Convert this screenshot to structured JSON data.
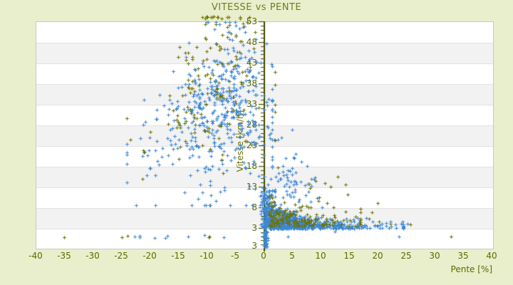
{
  "chart_data": {
    "type": "scatter",
    "title": "VITESSE vs PENTE",
    "xlabel": "Pente [%]",
    "ylabel": "Vitesse [km/h]",
    "xlim": [
      -40,
      40
    ],
    "ylim": [
      -1.8,
      53
    ],
    "x_ticks": [
      -40,
      -35,
      -30,
      -25,
      -20,
      -15,
      -10,
      -5,
      0,
      5,
      10,
      15,
      20,
      25,
      30,
      35,
      40
    ],
    "y_ticks": [
      53,
      48,
      43,
      38,
      33,
      28,
      23,
      18,
      13,
      8,
      3
    ],
    "y_axis_bottom_label": "3",
    "grid": "horizontal-bands",
    "legend": "none",
    "axis_x_position": 0,
    "seed": 1234,
    "colors": {
      "background": "#e9efcc",
      "plot_background": "#ffffff",
      "band_alt": "#f2f2f2",
      "band_separator": "#e2e2e2",
      "plot_border": "#c8c8c8",
      "axis_line": "#414b00",
      "tick_label": "#5d6700",
      "title": "#6b7d25",
      "series_blue": "#3d87d3",
      "series_olive": "#6d7300"
    },
    "series": [
      {
        "name": "",
        "color": "#3d87d3",
        "marker": "cross",
        "clusters": [
          {
            "type": "fan",
            "count": 480,
            "yMu": 31,
            "ySigma": 9.5,
            "yMin": 8.5,
            "yMax": 52.8,
            "yTop": 53.5,
            "xC": -5.5,
            "xDrift": -0.1,
            "xS0": 2.0,
            "xSGrow": 0.14,
            "xMin": -24,
            "xMax": 1.5
          },
          {
            "type": "gauss",
            "count": 60,
            "xMu": 2.5,
            "xSigma": 2.2,
            "xMin": 0,
            "xMax": 9,
            "yMu": 14,
            "ySigma": 6,
            "yMin": 7,
            "yMax": 34
          },
          {
            "type": "blob",
            "count": 700,
            "xBase": 0.8,
            "xMean": 5.5,
            "xMax": 24.5,
            "yBase": 2.8,
            "yS0": 0.9,
            "ySAmp": 2.8,
            "yXScale": 5,
            "yMax": 15
          },
          {
            "type": "halfcol",
            "count": 130,
            "xMu": 0.4,
            "xSigma": 0.45,
            "xMin": -0.6,
            "xMax": 1.6,
            "yBase": 3,
            "yScale": 5,
            "yMax": 28
          },
          {
            "type": "strip",
            "count": 45,
            "xMu": 0.35,
            "xSigma": 0.22,
            "xMin": -0.2,
            "xMax": 0.9,
            "yMin": -1.6,
            "yMax": 3.0
          },
          {
            "type": "box",
            "count": 9,
            "xMin": -26,
            "xMax": -4,
            "yMin": 0.5,
            "yMax": 1.4
          },
          {
            "type": "gauss",
            "count": 25,
            "xMu": 7,
            "xSigma": 3,
            "xMin": 2,
            "xMax": 16,
            "yMu": 13,
            "ySigma": 4,
            "yMin": 8,
            "yMax": 26
          },
          {
            "type": "points",
            "pts": [
              [
                23.8,
                0.9
              ],
              [
                4.2,
                1.0
              ],
              [
                12.5,
                2.2
              ],
              [
                25.2,
                4.1
              ]
            ]
          }
        ]
      },
      {
        "name": "",
        "color": "#6d7300",
        "marker": "cross",
        "clusters": [
          {
            "type": "fan",
            "count": 140,
            "yMu": 36,
            "ySigma": 10,
            "yMin": 10,
            "yMax": 54.0,
            "yTop": 55,
            "xC": -6.5,
            "xDrift": -0.12,
            "xS0": 2.6,
            "xSGrow": 0.16,
            "xMin": -25,
            "xMax": 2
          },
          {
            "type": "box",
            "count": 12,
            "xMin": -11.5,
            "xMax": -2,
            "yMin": 51.5,
            "yMax": 54.2
          },
          {
            "type": "blob",
            "count": 150,
            "xBase": 1.0,
            "xMean": 5.5,
            "xMax": 17,
            "yBase": 3.4,
            "yS0": 1.4,
            "ySAmp": 3.0,
            "yXScale": 5,
            "yMax": 14.5
          },
          {
            "type": "gauss",
            "count": 18,
            "xMu": 9,
            "xSigma": 4,
            "xMin": 2,
            "xMax": 20,
            "yMu": 11,
            "ySigma": 3.5,
            "yMin": 7,
            "yMax": 22
          },
          {
            "type": "box",
            "count": 5,
            "xMin": -37,
            "xMax": -8,
            "yMin": 0.6,
            "yMax": 1.4
          },
          {
            "type": "points",
            "pts": [
              [
                32.9,
                0.9
              ],
              [
                18.5,
                5.2
              ],
              [
                20.2,
                4.6
              ],
              [
                22.3,
                4.1
              ],
              [
                19.0,
                6.8
              ],
              [
                25.8,
                3.9
              ]
            ]
          }
        ]
      }
    ]
  }
}
